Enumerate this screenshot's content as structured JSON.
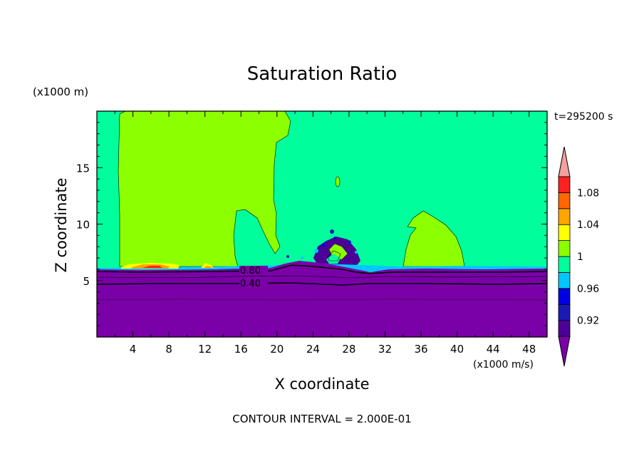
{
  "chart_data": {
    "type": "heatmap",
    "title": "Saturation Ratio",
    "xlabel": "X coordinate",
    "ylabel": "Z coordinate",
    "x_unit": "(x1000 m/s)",
    "y_unit": "(x1000 m)",
    "time_label": "t=295200 s",
    "footer": "CONTOUR INTERVAL = 2.000E-01",
    "xlim": [
      0,
      50
    ],
    "ylim": [
      0,
      20
    ],
    "x_ticks": [
      "4",
      "8",
      "12",
      "16",
      "20",
      "24",
      "28",
      "32",
      "36",
      "40",
      "44",
      "48"
    ],
    "y_ticks": [
      "5",
      "10",
      "15"
    ],
    "contour_labels": [
      "0.80",
      "0.40"
    ],
    "colorbar": {
      "tick_labels": [
        "0.92",
        "0.96",
        "1",
        "1.04",
        "1.08"
      ],
      "levels": [
        0.9,
        0.92,
        0.94,
        0.96,
        0.98,
        1.0,
        1.02,
        1.04,
        1.06,
        1.08,
        1.1
      ],
      "colors": [
        "#4b0096",
        "#1a1ab4",
        "#0000e6",
        "#00c8ff",
        "#00ff9c",
        "#8cff00",
        "#ffff00",
        "#ffa500",
        "#ff6600",
        "#ff2020",
        "#f2a0a0"
      ],
      "under_color": "#7a00a8",
      "over_color": "#f2a0a0"
    },
    "regions": {
      "background_level": "0.98-1.00",
      "dry_layer_top_km": 6.2,
      "supersaturated_zone_1_x": [
        2.5,
        21
      ],
      "supersaturated_zone_2_x": [
        34.5,
        40.5
      ],
      "convective_cell_x": [
        24,
        29
      ]
    }
  }
}
